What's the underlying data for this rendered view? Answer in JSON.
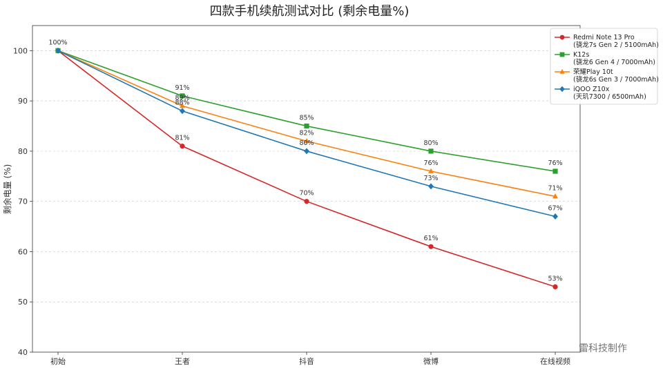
{
  "chart_data": {
    "type": "line",
    "title": "四款手机续航测试对比 (剩余电量%)",
    "xlabel": "",
    "ylabel": "剩余电量 (%)",
    "categories": [
      "初始",
      "王者",
      "抖音",
      "微博",
      "在线视频"
    ],
    "ylim": [
      40,
      105
    ],
    "yticks": [
      40,
      50,
      60,
      70,
      80,
      90,
      100
    ],
    "grid": "y-dashed",
    "legend_position": "top-right",
    "series": [
      {
        "name": "Redmi Note 13 Pro",
        "subtitle": "(骁龙7s Gen 2 / 5100mAh)",
        "values": [
          100,
          81,
          70,
          61,
          53
        ],
        "color": "#d62728",
        "marker": "circle"
      },
      {
        "name": "K12s",
        "subtitle": "(骁龙6 Gen 4 / 7000mAh)",
        "values": [
          100,
          91,
          85,
          80,
          76
        ],
        "color": "#2ca02c",
        "marker": "square"
      },
      {
        "name": "荣耀Play 10t",
        "subtitle": "(骁龙6s Gen 3 / 7000mAh)",
        "values": [
          100,
          89,
          82,
          76,
          71
        ],
        "color": "#ff7f0e",
        "marker": "triangle"
      },
      {
        "name": "iQOO Z10x",
        "subtitle": "(天玑7300 / 6500mAh)",
        "values": [
          100,
          88,
          80,
          73,
          67
        ],
        "color": "#1f77b4",
        "marker": "diamond"
      }
    ],
    "data_labels": {
      "start_label": "100%",
      "format_suffix": "%"
    },
    "watermark": "雷科技制作"
  }
}
